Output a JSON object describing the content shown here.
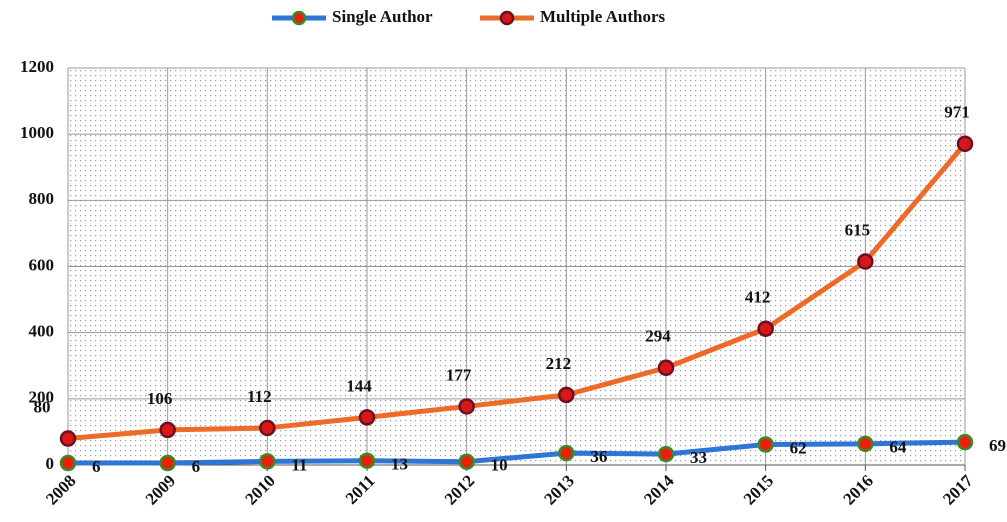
{
  "chart_data": {
    "type": "line",
    "categories": [
      "2008",
      "2009",
      "2010",
      "2011",
      "2012",
      "2013",
      "2014",
      "2015",
      "2016",
      "2017"
    ],
    "series": [
      {
        "name": "Single Author",
        "color": "#2e75d6",
        "marker_fill": "#e8200c",
        "marker_edge": "#3a8a2a",
        "values": [
          6,
          6,
          11,
          13,
          10,
          36,
          33,
          62,
          64,
          69
        ]
      },
      {
        "name": "Multiple Authors",
        "color": "#ed6a28",
        "marker_fill": "#d81818",
        "marker_edge": "#6a1020",
        "values": [
          80,
          106,
          112,
          144,
          177,
          212,
          294,
          412,
          615,
          971
        ]
      }
    ],
    "ylim": [
      0,
      1200
    ],
    "yticks": [
      0,
      200,
      400,
      600,
      800,
      1000,
      1200
    ],
    "grid": true,
    "legend": "top"
  }
}
